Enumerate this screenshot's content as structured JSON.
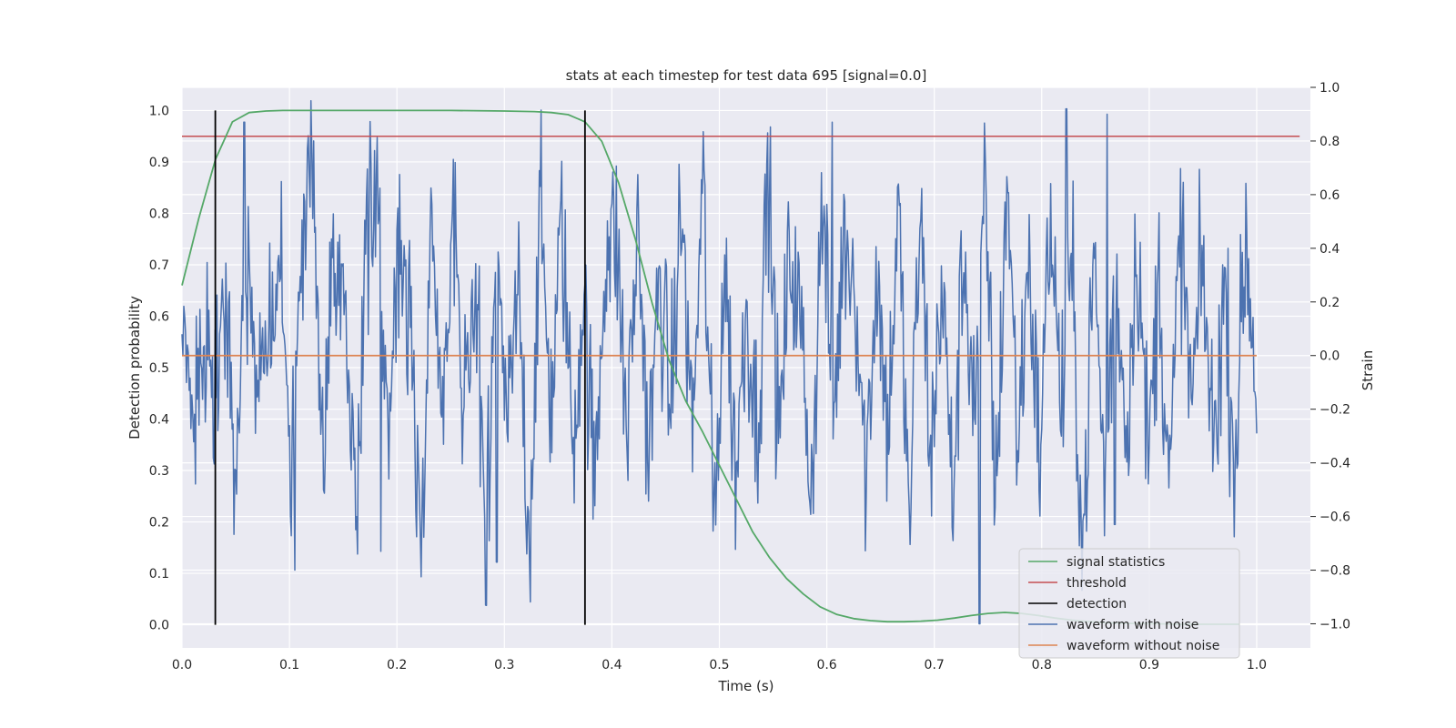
{
  "chart_data": {
    "type": "line",
    "title": "stats at each timestep for test data 695 [signal=0.0]",
    "xlabel": "Time (s)",
    "ylabel_left": "Detection probability",
    "ylabel_right": "Strain",
    "xlim": [
      0.0,
      1.05
    ],
    "ylim_left": [
      -0.045,
      1.045
    ],
    "ylim_right": [
      -1.09,
      1.0
    ],
    "x_ticks": [
      0.0,
      0.1,
      0.2,
      0.3,
      0.4,
      0.5,
      0.6,
      0.7,
      0.8,
      0.9,
      1.0
    ],
    "x_tick_labels": [
      "0.0",
      "0.1",
      "0.2",
      "0.3",
      "0.4",
      "0.5",
      "0.6",
      "0.7",
      "0.8",
      "0.9",
      "1.0"
    ],
    "y_left_ticks": [
      0.0,
      0.1,
      0.2,
      0.3,
      0.4,
      0.5,
      0.6,
      0.7,
      0.8,
      0.9,
      1.0
    ],
    "y_left_tick_labels": [
      "0.0",
      "0.1",
      "0.2",
      "0.3",
      "0.4",
      "0.5",
      "0.6",
      "0.7",
      "0.8",
      "0.9",
      "1.0"
    ],
    "y_right_ticks": [
      -1.0,
      -0.8,
      -0.6,
      -0.4,
      -0.2,
      0.0,
      0.2,
      0.4,
      0.6,
      0.8,
      1.0
    ],
    "y_right_tick_labels": [
      "−1.0",
      "−0.8",
      "−0.6",
      "−0.4",
      "−0.2",
      "0.0",
      "0.2",
      "0.4",
      "0.6",
      "0.8",
      "1.0"
    ],
    "grid": true,
    "legend_position": "bottom-right",
    "colors": {
      "background": "#eaeaf2",
      "grid": "#ffffff",
      "signal": "#55a868",
      "threshold": "#c44e52",
      "detection": "#000000",
      "noisy": "#4c72b0",
      "clean": "#dd8452"
    },
    "series": [
      {
        "name": "signal statistics",
        "axis": "left",
        "x": [
          0.0,
          0.0156,
          0.0312,
          0.0469,
          0.0625,
          0.0781,
          0.0938,
          0.1094,
          0.125,
          0.2,
          0.25,
          0.3,
          0.3281,
          0.3438,
          0.3594,
          0.375,
          0.3906,
          0.4062,
          0.4219,
          0.4375,
          0.4531,
          0.4688,
          0.4844,
          0.5,
          0.5156,
          0.5312,
          0.5469,
          0.5625,
          0.5781,
          0.5938,
          0.6094,
          0.625,
          0.6406,
          0.6562,
          0.6719,
          0.6875,
          0.7031,
          0.7188,
          0.7344,
          0.75,
          0.7656,
          0.7812,
          0.7969,
          0.8125,
          0.8281,
          0.8438,
          0.8594,
          0.875,
          0.8906,
          0.9062,
          0.9219,
          0.9375,
          0.9531,
          0.9688,
          0.9844
        ],
        "values": [
          0.66,
          0.79,
          0.905,
          0.978,
          0.996,
          0.999,
          1.0,
          1.0,
          1.0,
          1.0,
          1.0,
          0.999,
          0.998,
          0.996,
          0.992,
          0.978,
          0.94,
          0.86,
          0.75,
          0.625,
          0.515,
          0.435,
          0.375,
          0.31,
          0.245,
          0.18,
          0.13,
          0.09,
          0.06,
          0.035,
          0.02,
          0.012,
          0.008,
          0.006,
          0.006,
          0.007,
          0.009,
          0.013,
          0.018,
          0.022,
          0.024,
          0.022,
          0.018,
          0.013,
          0.009,
          0.006,
          0.004,
          0.003,
          0.002,
          0.002,
          0.001,
          0.001,
          0.001,
          0.001,
          0.001
        ]
      },
      {
        "name": "threshold",
        "axis": "left",
        "x": [
          0.0,
          1.04
        ],
        "values": [
          0.95,
          0.95
        ]
      },
      {
        "name": "detection",
        "axis": "left",
        "x": [
          0.031,
          0.375
        ],
        "values": [
          1.0,
          1.0
        ]
      },
      {
        "name": "waveform with noise",
        "axis": "right",
        "x_start": 0.0,
        "x_end": 1.0,
        "anchors": [
          0.4,
          -0.3,
          0.1,
          -0.2,
          0.25,
          -0.5,
          0.3,
          -0.1,
          0.15,
          0.35,
          -0.45,
          0.2,
          0.8,
          -0.4,
          0.5,
          0.1,
          -0.55,
          0.45,
          0.6,
          -0.35,
          0.5,
          0.2,
          -0.8,
          0.4,
          -0.3,
          0.55,
          -0.2,
          0.3,
          -0.6,
          0.45,
          -0.3,
          0.25,
          -0.7,
          0.55,
          -0.2,
          0.5,
          -0.35,
          0.25,
          -0.5,
          0.4,
          0.45,
          -0.3,
          0.5,
          -0.4,
          0.3,
          -0.2,
          0.55,
          -0.3,
          0.65,
          -0.65,
          0.35,
          -0.45,
          0.2,
          -0.3,
          0.7,
          -0.35,
          0.4,
          0.1,
          -0.5,
          0.6,
          -0.25,
          0.45,
          0.3,
          -0.45,
          0.35,
          -0.3,
          0.55,
          -0.65,
          0.55,
          -0.4,
          0.3,
          -0.55,
          0.4,
          -0.2,
          0.6,
          -0.55,
          0.7,
          -0.35,
          0.4,
          -0.4,
          0.55,
          -0.2,
          0.3,
          -0.75,
          0.4,
          -0.5,
          0.35,
          -0.3,
          0.45,
          -0.4,
          0.3,
          -0.5,
          0.5,
          -0.2,
          0.35,
          -0.35,
          0.25,
          -0.4,
          0.45,
          -0.15
        ],
        "spikes": [
          {
            "x": 0.058,
            "value": 0.87
          },
          {
            "x": 0.105,
            "value": -0.8
          },
          {
            "x": 0.185,
            "value": -0.73
          },
          {
            "x": 0.293,
            "value": -0.77
          },
          {
            "x": 0.605,
            "value": 0.87
          },
          {
            "x": 0.742,
            "value": -1.0
          },
          {
            "x": 0.823,
            "value": 0.92
          },
          {
            "x": 0.861,
            "value": 0.9
          },
          {
            "x": 0.868,
            "value": -0.63
          }
        ]
      },
      {
        "name": "waveform without noise",
        "axis": "right",
        "x": [
          0.0,
          1.0
        ],
        "values": [
          0.0,
          0.0
        ]
      }
    ]
  }
}
